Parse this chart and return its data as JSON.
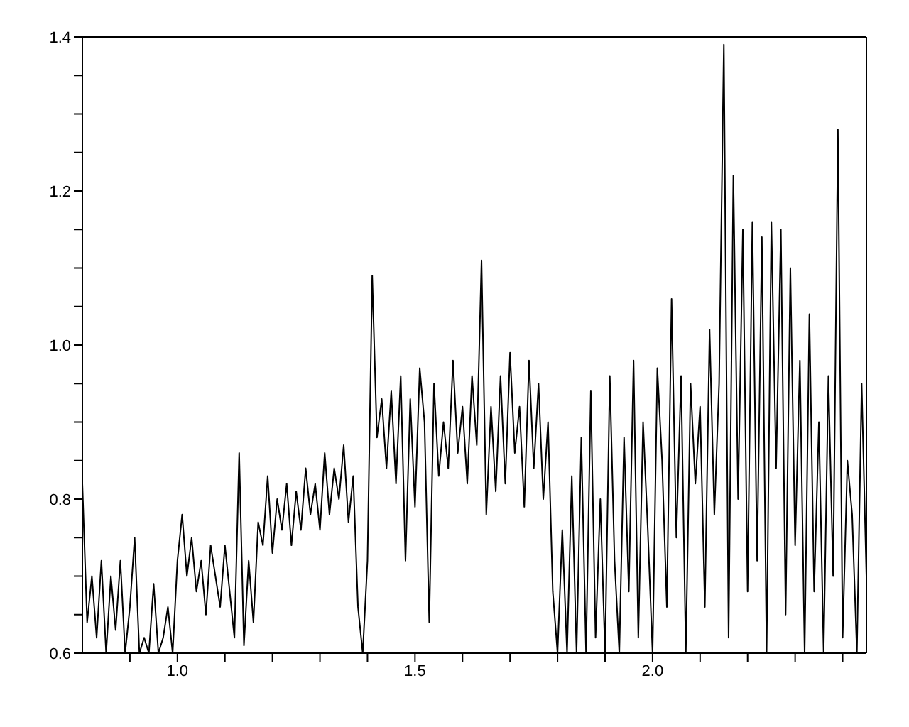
{
  "chart_data": {
    "type": "line",
    "x": [
      0.8,
      0.81,
      0.82,
      0.83,
      0.84,
      0.85,
      0.86,
      0.87,
      0.88,
      0.89,
      0.9,
      0.91,
      0.92,
      0.93,
      0.94,
      0.95,
      0.96,
      0.97,
      0.98,
      0.99,
      1.0,
      1.01,
      1.02,
      1.03,
      1.04,
      1.05,
      1.06,
      1.07,
      1.08,
      1.09,
      1.1,
      1.11,
      1.12,
      1.13,
      1.14,
      1.15,
      1.16,
      1.17,
      1.18,
      1.19,
      1.2,
      1.21,
      1.22,
      1.23,
      1.24,
      1.25,
      1.26,
      1.27,
      1.28,
      1.29,
      1.3,
      1.31,
      1.32,
      1.33,
      1.34,
      1.35,
      1.36,
      1.37,
      1.38,
      1.39,
      1.4,
      1.41,
      1.42,
      1.43,
      1.44,
      1.45,
      1.46,
      1.47,
      1.48,
      1.49,
      1.5,
      1.51,
      1.52,
      1.53,
      1.54,
      1.55,
      1.56,
      1.57,
      1.58,
      1.59,
      1.6,
      1.61,
      1.62,
      1.63,
      1.64,
      1.65,
      1.66,
      1.67,
      1.68,
      1.69,
      1.7,
      1.71,
      1.72,
      1.73,
      1.74,
      1.75,
      1.76,
      1.77,
      1.78,
      1.79,
      1.8,
      1.81,
      1.82,
      1.83,
      1.84,
      1.85,
      1.86,
      1.87,
      1.88,
      1.89,
      1.9,
      1.91,
      1.92,
      1.93,
      1.94,
      1.95,
      1.96,
      1.97,
      1.98,
      1.99,
      2.0,
      2.01,
      2.02,
      2.03,
      2.04,
      2.05,
      2.06,
      2.07,
      2.08,
      2.09,
      2.1,
      2.11,
      2.12,
      2.13,
      2.14,
      2.15,
      2.16,
      2.17,
      2.18,
      2.19,
      2.2,
      2.21,
      2.22,
      2.23,
      2.24,
      2.25,
      2.26,
      2.27,
      2.28,
      2.29,
      2.3,
      2.31,
      2.32,
      2.33,
      2.34,
      2.35,
      2.36,
      2.37,
      2.38,
      2.39,
      2.4,
      2.41,
      2.42,
      2.43,
      2.44,
      2.45
    ],
    "series": [
      {
        "color": "#000000",
        "values": [
          0.82,
          0.64,
          0.7,
          0.62,
          0.72,
          0.6,
          0.7,
          0.63,
          0.72,
          0.6,
          0.66,
          0.75,
          0.6,
          0.62,
          0.6,
          0.69,
          0.6,
          0.62,
          0.66,
          0.6,
          0.72,
          0.78,
          0.7,
          0.75,
          0.68,
          0.72,
          0.65,
          0.74,
          0.7,
          0.66,
          0.74,
          0.68,
          0.62,
          0.86,
          0.61,
          0.72,
          0.64,
          0.77,
          0.74,
          0.83,
          0.73,
          0.8,
          0.76,
          0.82,
          0.74,
          0.81,
          0.76,
          0.84,
          0.78,
          0.82,
          0.76,
          0.86,
          0.78,
          0.84,
          0.8,
          0.87,
          0.77,
          0.83,
          0.66,
          0.6,
          0.72,
          1.09,
          0.88,
          0.93,
          0.84,
          0.94,
          0.82,
          0.96,
          0.72,
          0.93,
          0.79,
          0.97,
          0.9,
          0.64,
          0.95,
          0.83,
          0.9,
          0.84,
          0.98,
          0.86,
          0.92,
          0.82,
          0.96,
          0.87,
          1.11,
          0.78,
          0.92,
          0.81,
          0.96,
          0.82,
          0.99,
          0.86,
          0.92,
          0.79,
          0.98,
          0.84,
          0.95,
          0.8,
          0.9,
          0.68,
          0.6,
          0.76,
          0.6,
          0.83,
          0.6,
          0.88,
          0.6,
          0.94,
          0.62,
          0.8,
          0.6,
          0.96,
          0.72,
          0.6,
          0.88,
          0.68,
          0.98,
          0.62,
          0.9,
          0.76,
          0.6,
          0.97,
          0.85,
          0.66,
          1.06,
          0.75,
          0.96,
          0.6,
          0.95,
          0.82,
          0.92,
          0.66,
          1.02,
          0.78,
          0.95,
          1.39,
          0.62,
          1.22,
          0.8,
          1.15,
          0.68,
          1.16,
          0.72,
          1.14,
          0.6,
          1.16,
          0.84,
          1.15,
          0.65,
          1.1,
          0.74,
          0.98,
          0.6,
          1.04,
          0.68,
          0.9,
          0.6,
          0.96,
          0.7,
          1.28,
          0.62,
          0.85,
          0.78,
          0.6,
          0.95,
          0.7
        ]
      }
    ],
    "xlim": [
      0.8,
      2.45
    ],
    "xticks": [
      {
        "value": 0.9,
        "label": null
      },
      {
        "value": 1.0,
        "label": "1.0"
      },
      {
        "value": 1.1,
        "label": null
      },
      {
        "value": 1.2,
        "label": null
      },
      {
        "value": 1.3,
        "label": null
      },
      {
        "value": 1.4,
        "label": null
      },
      {
        "value": 1.5,
        "label": "1.5"
      },
      {
        "value": 1.6,
        "label": null
      },
      {
        "value": 1.7,
        "label": null
      },
      {
        "value": 1.8,
        "label": null
      },
      {
        "value": 1.9,
        "label": null
      },
      {
        "value": 2.0,
        "label": "2.0"
      },
      {
        "value": 2.1,
        "label": null
      },
      {
        "value": 2.2,
        "label": null
      },
      {
        "value": 2.3,
        "label": null
      },
      {
        "value": 2.4,
        "label": null
      }
    ],
    "ylim": [
      0.6,
      1.4
    ],
    "yticks": [
      {
        "value": 0.6,
        "label": "0.6"
      },
      {
        "value": 0.65,
        "label": null
      },
      {
        "value": 0.7,
        "label": null
      },
      {
        "value": 0.75,
        "label": null
      },
      {
        "value": 0.8,
        "label": "0.8"
      },
      {
        "value": 0.85,
        "label": null
      },
      {
        "value": 0.9,
        "label": null
      },
      {
        "value": 0.95,
        "label": null
      },
      {
        "value": 1.0,
        "label": "1.0"
      },
      {
        "value": 1.05,
        "label": null
      },
      {
        "value": 1.1,
        "label": null
      },
      {
        "value": 1.15,
        "label": null
      },
      {
        "value": 1.2,
        "label": "1.2"
      },
      {
        "value": 1.25,
        "label": null
      },
      {
        "value": 1.3,
        "label": null
      },
      {
        "value": 1.35,
        "label": null
      },
      {
        "value": 1.4,
        "label": "1.4"
      }
    ],
    "marker": "none",
    "line_style": "solid",
    "grid": false,
    "legend": false
  }
}
